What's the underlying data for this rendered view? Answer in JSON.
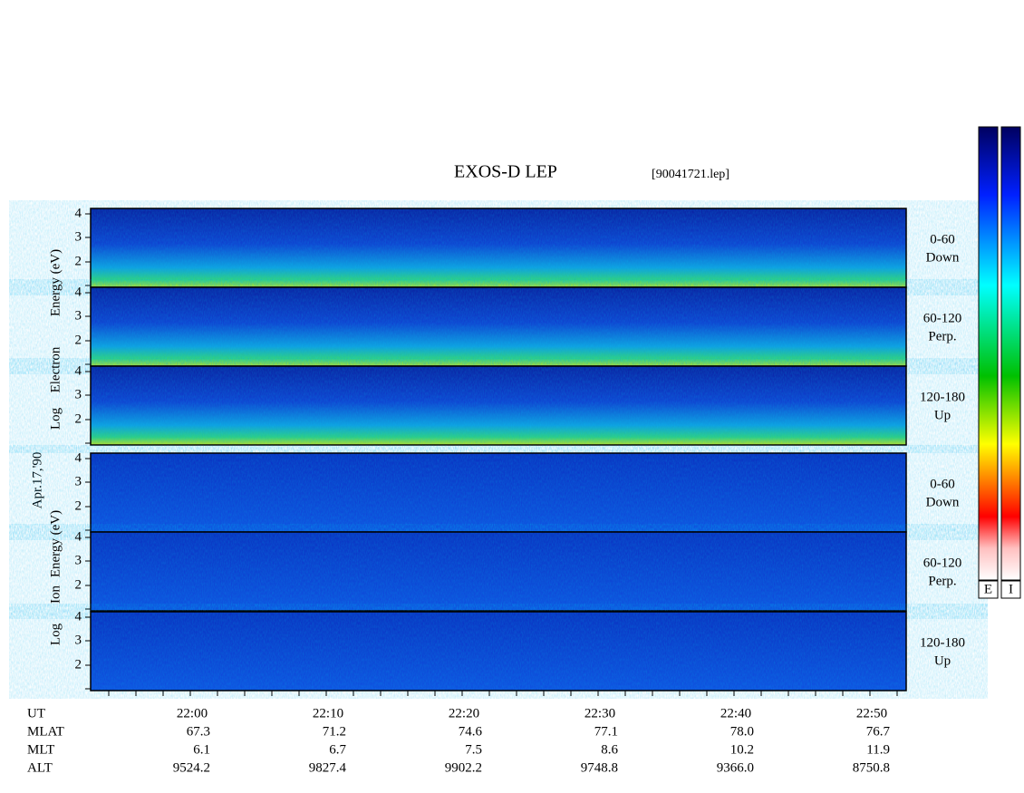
{
  "header": {
    "title": "EXOS-D LEP",
    "file": "[90041721.lep]"
  },
  "date": "Apr.17,'90",
  "electron_axis": [
    "Energy (eV)",
    "Electron",
    "Log"
  ],
  "ion_axis": [
    "Energy (eV)",
    "Ion",
    "Log"
  ],
  "panels": [
    {
      "ticks": [
        4,
        3,
        2
      ],
      "label": [
        "0-60",
        "Down"
      ]
    },
    {
      "ticks": [
        4,
        3,
        2
      ],
      "label": [
        "60-120",
        "Perp."
      ]
    },
    {
      "ticks": [
        4,
        3,
        2
      ],
      "label": [
        "120-180",
        "Up"
      ]
    },
    {
      "ticks": [
        4,
        3,
        2
      ],
      "label": [
        "0-60",
        "Down"
      ]
    },
    {
      "ticks": [
        4,
        3,
        2
      ],
      "label": [
        "60-120",
        "Perp."
      ]
    },
    {
      "ticks": [
        4,
        3,
        2
      ],
      "label": [
        "120-180",
        "Up"
      ]
    }
  ],
  "rows": [
    {
      "label": "UT",
      "values": [
        "22:00",
        "22:10",
        "22:20",
        "22:30",
        "22:40",
        "22:50"
      ]
    },
    {
      "label": "MLAT",
      "values": [
        "67.3",
        "71.2",
        "74.6",
        "77.1",
        "78.0",
        "76.7"
      ]
    },
    {
      "label": "MLT",
      "values": [
        "6.1",
        "6.7",
        "7.5",
        "8.6",
        "10.2",
        "11.9"
      ]
    },
    {
      "label": "ALT",
      "values": [
        "9524.2",
        "9827.4",
        "9902.2",
        "9748.8",
        "9366.0",
        "8750.8"
      ]
    }
  ],
  "colorbars": [
    "E",
    "I"
  ]
}
